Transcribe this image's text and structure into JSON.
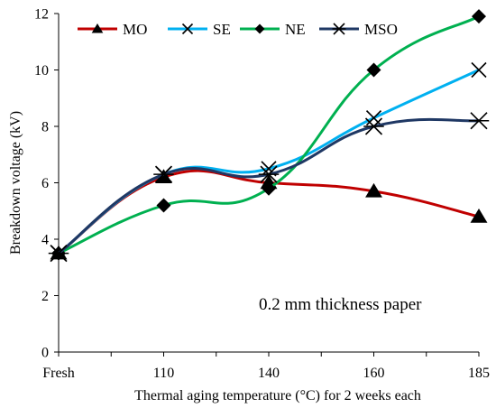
{
  "chart_data": {
    "type": "line",
    "title": "",
    "xlabel": "Thermal aging temperature (°C) for 2 weeks each",
    "ylabel": "Breakdown voltage (kV)",
    "annotation": "0.2 mm thickness paper",
    "categories": [
      "Fresh",
      "110",
      "140",
      "160",
      "185"
    ],
    "ylim": [
      0,
      12
    ],
    "yticks": [
      0,
      2,
      4,
      6,
      8,
      10,
      12
    ],
    "grid": false,
    "legend_position": "top",
    "series": [
      {
        "name": "MO",
        "color": "#c00000",
        "marker": "triangle",
        "values": [
          3.5,
          6.2,
          6.0,
          5.7,
          4.8
        ]
      },
      {
        "name": "SE",
        "color": "#00b0f0",
        "marker": "x",
        "values": [
          3.5,
          6.3,
          6.5,
          8.3,
          10.0
        ]
      },
      {
        "name": "NE",
        "color": "#00b050",
        "marker": "diamond",
        "values": [
          3.5,
          5.2,
          5.8,
          10.0,
          11.9
        ]
      },
      {
        "name": "MSO",
        "color": "#1f3864",
        "marker": "star",
        "values": [
          3.5,
          6.3,
          6.3,
          8.0,
          8.2
        ]
      }
    ]
  }
}
